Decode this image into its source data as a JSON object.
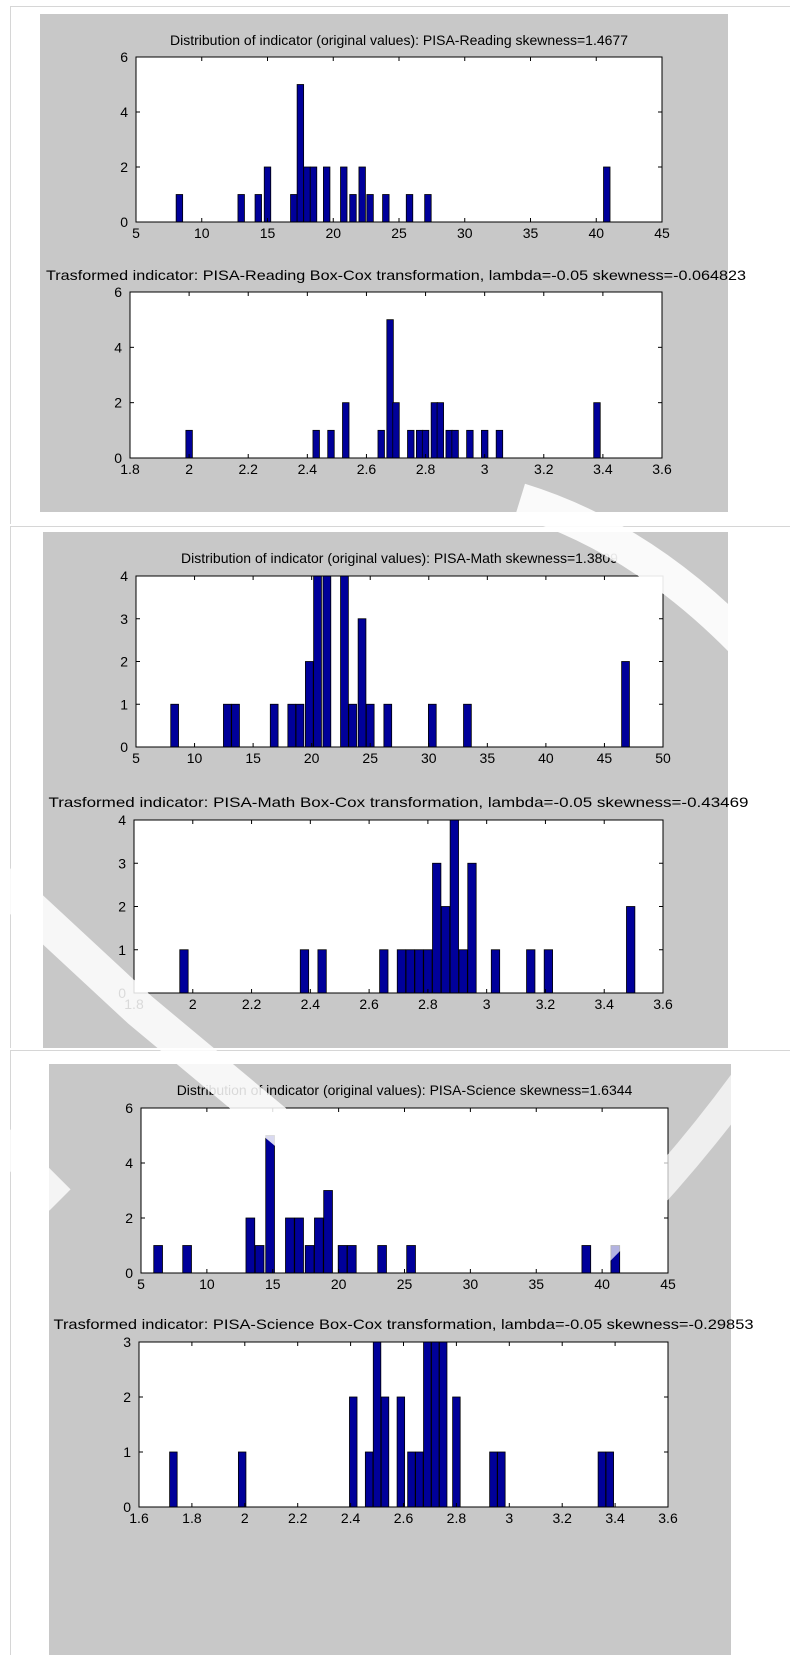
{
  "colors": {
    "bar_fill": "#00009a",
    "bar_stroke": "#000000",
    "panel_bg": "#c8c8c8",
    "axes_bg": "#ffffff",
    "watermark": "#ffffff"
  },
  "chart_data": [
    {
      "type": "bar",
      "title": "Distribution of indicator (original values):  PISA-Reading skewness=1.4677",
      "xlim": [
        5,
        45
      ],
      "ylim": [
        0,
        6
      ],
      "xticks": [
        "5",
        "10",
        "15",
        "20",
        "25",
        "30",
        "35",
        "40",
        "45"
      ],
      "yticks": [
        "0",
        "2",
        "4",
        "6"
      ],
      "x": [
        8.3,
        13.0,
        14.3,
        15.0,
        17.0,
        17.5,
        18.0,
        18.5,
        19.5,
        20.8,
        21.5,
        22.2,
        22.8,
        24.0,
        25.8,
        27.2,
        40.8
      ],
      "values": [
        1,
        1,
        1,
        2,
        1,
        5,
        2,
        2,
        2,
        2,
        1,
        2,
        1,
        1,
        1,
        1,
        2
      ]
    },
    {
      "type": "bar",
      "title": "Trasformed indicator: PISA-Reading Box-Cox transformation, lambda=-0.05 skewness=-0.064823",
      "xlim": [
        1.8,
        3.6
      ],
      "ylim": [
        0,
        6
      ],
      "xticks": [
        "1.8",
        "2",
        "2.2",
        "2.4",
        "2.6",
        "2.8",
        "3",
        "3.2",
        "3.4",
        "3.6"
      ],
      "yticks": [
        "0",
        "2",
        "4",
        "6"
      ],
      "x": [
        2.0,
        2.43,
        2.48,
        2.53,
        2.65,
        2.68,
        2.7,
        2.75,
        2.78,
        2.8,
        2.83,
        2.85,
        2.88,
        2.9,
        2.95,
        3.0,
        3.05,
        3.38
      ],
      "values": [
        1,
        1,
        1,
        2,
        1,
        5,
        2,
        1,
        1,
        1,
        2,
        2,
        1,
        1,
        1,
        1,
        1,
        2
      ]
    },
    {
      "type": "bar",
      "title": "Distribution of indicator (original values):  PISA-Math skewness=1.3809",
      "xlim": [
        5,
        50
      ],
      "ylim": [
        0,
        4
      ],
      "xticks": [
        "5",
        "10",
        "15",
        "20",
        "25",
        "30",
        "35",
        "40",
        "45",
        "50"
      ],
      "yticks": [
        "0",
        "1",
        "2",
        "3",
        "4"
      ],
      "x": [
        8.3,
        12.8,
        13.5,
        16.8,
        18.3,
        19.0,
        19.8,
        20.5,
        21.3,
        22.8,
        23.5,
        24.3,
        25.0,
        26.5,
        30.3,
        33.3,
        46.8
      ],
      "values": [
        1,
        1,
        1,
        1,
        1,
        1,
        2,
        4,
        4,
        4,
        1,
        3,
        1,
        1,
        1,
        1,
        2
      ]
    },
    {
      "type": "bar",
      "title": "Trasformed indicator: PISA-Math Box-Cox transformation, lambda=-0.05 skewness=-0.43469",
      "xlim": [
        1.8,
        3.6
      ],
      "ylim": [
        0,
        4
      ],
      "xticks": [
        "1.8",
        "2",
        "2.2",
        "2.4",
        "2.6",
        "2.8",
        "3",
        "3.2",
        "3.4",
        "3.6"
      ],
      "yticks": [
        "0",
        "1",
        "2",
        "3",
        "4"
      ],
      "x": [
        1.97,
        2.38,
        2.44,
        2.65,
        2.71,
        2.74,
        2.77,
        2.8,
        2.83,
        2.86,
        2.89,
        2.92,
        2.95,
        3.03,
        3.15,
        3.21,
        3.49
      ],
      "values": [
        1,
        1,
        1,
        1,
        1,
        1,
        1,
        1,
        3,
        2,
        4,
        1,
        3,
        1,
        1,
        1,
        2
      ]
    },
    {
      "type": "bar",
      "title": "Distribution of indicator (original values):  PISA-Science skewness=1.6344",
      "xlim": [
        5,
        45
      ],
      "ylim": [
        0,
        6
      ],
      "xticks": [
        "5",
        "10",
        "15",
        "20",
        "25",
        "30",
        "35",
        "40",
        "45"
      ],
      "yticks": [
        "0",
        "2",
        "4",
        "6"
      ],
      "x": [
        6.3,
        8.5,
        13.3,
        14.0,
        14.8,
        16.3,
        17.0,
        17.8,
        18.5,
        19.2,
        20.3,
        21.0,
        23.3,
        25.5,
        38.8,
        41.0
      ],
      "values": [
        1,
        1,
        2,
        1,
        5,
        2,
        2,
        1,
        2,
        3,
        1,
        1,
        1,
        1,
        1,
        1
      ]
    },
    {
      "type": "bar",
      "title": "Trasformed indicator: PISA-Science Box-Cox transformation, lambda=-0.05 skewness=-0.29853",
      "xlim": [
        1.6,
        3.6
      ],
      "ylim": [
        0,
        3
      ],
      "xticks": [
        "1.6",
        "1.8",
        "2",
        "2.2",
        "2.4",
        "2.6",
        "2.8",
        "3",
        "3.2",
        "3.4",
        "3.6"
      ],
      "yticks": [
        "0",
        "1",
        "2",
        "3"
      ],
      "x": [
        1.73,
        1.99,
        2.41,
        2.47,
        2.5,
        2.53,
        2.59,
        2.63,
        2.66,
        2.69,
        2.72,
        2.75,
        2.8,
        2.94,
        2.97,
        3.35,
        3.38
      ],
      "values": [
        1,
        1,
        2,
        1,
        3,
        2,
        2,
        1,
        1,
        3,
        3,
        3,
        2,
        1,
        1,
        1,
        1
      ]
    }
  ]
}
